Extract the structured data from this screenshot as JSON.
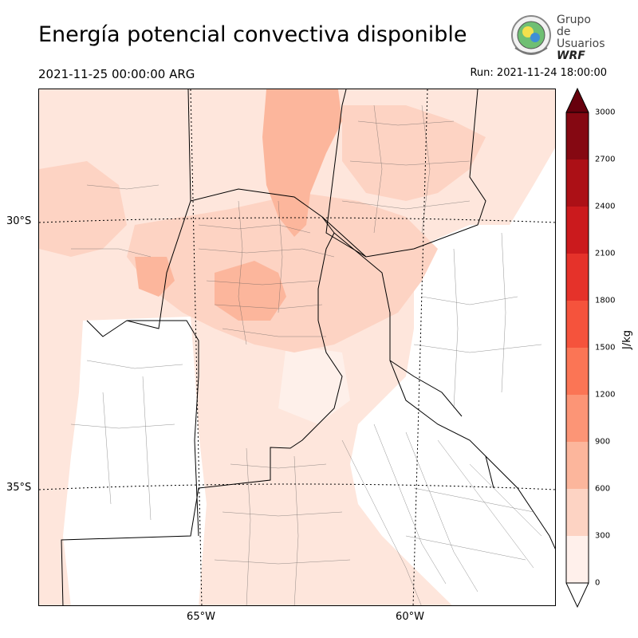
{
  "header": {
    "title": "Energía potencial convectiva disponible",
    "valid_time": "2021-11-25 00:00:00 ARG",
    "run_time": "Run: 2021-11-24 18:00:00"
  },
  "logo": {
    "line1": "Grupo de",
    "line2": "Usuarios",
    "line3": "WRF"
  },
  "map": {
    "lat_labels": [
      "30°S",
      "35°S"
    ],
    "lon_labels": [
      "65°W",
      "60°W"
    ],
    "land_color": "#ffffff",
    "boundary_color": "#000000"
  },
  "colorbar": {
    "unit": "J/kg",
    "ticks": [
      "0",
      "300",
      "600",
      "900",
      "1200",
      "1500",
      "1800",
      "2100",
      "2400",
      "2700",
      "3000"
    ],
    "colors": [
      "#fff0eb",
      "#fdd3c3",
      "#fcb69c",
      "#fc9576",
      "#fb7555",
      "#f5533c",
      "#e5322a",
      "#cb1a1d",
      "#ac1016",
      "#850812"
    ],
    "under_color": "#ffffff",
    "over_color": "#67000d"
  }
}
